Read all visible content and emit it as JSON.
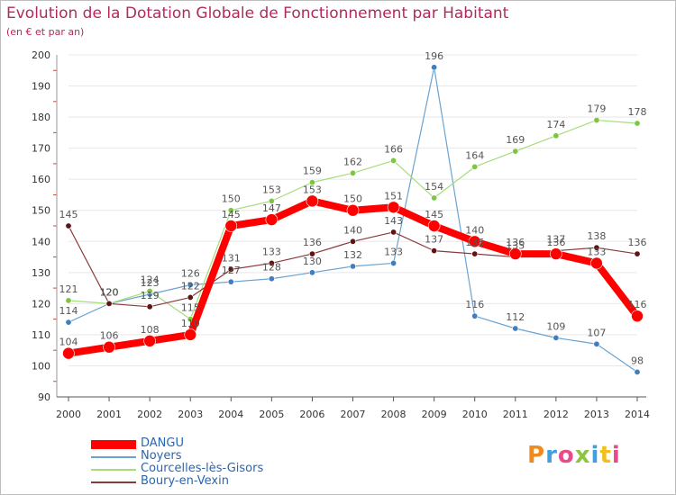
{
  "chart_data": {
    "type": "line",
    "title": "Evolution de la Dotation Globale de Fonctionnement par Habitant",
    "subtitle": "(en € et par an)",
    "xlabel": "",
    "ylabel": "",
    "ylim": [
      90,
      200
    ],
    "yticks": [
      90,
      100,
      110,
      120,
      130,
      140,
      150,
      160,
      170,
      180,
      190,
      200
    ],
    "x": [
      "2000",
      "2001",
      "2002",
      "2003",
      "2004",
      "2005",
      "2006",
      "2007",
      "2008",
      "2009",
      "2010",
      "2011",
      "2012",
      "2013",
      "2014"
    ],
    "legend_position": "bottom-left",
    "series": [
      {
        "name": "Noyers",
        "color": "#6aa3d0",
        "marker": "#3f7fbf",
        "width": 1.2,
        "radius": 3.2,
        "values": [
          114,
          120,
          123,
          126,
          127,
          128,
          130,
          132,
          133,
          196,
          116,
          112,
          109,
          107,
          98
        ],
        "labels": [
          "114",
          "120",
          "123",
          "126",
          "127",
          "128",
          "130",
          "132",
          "133",
          "196",
          "116",
          "112",
          "109",
          "107",
          "98"
        ]
      },
      {
        "name": "Courcelles-lès-Gisors",
        "color": "#a6dd7a",
        "marker": "#7cc642",
        "width": 1.2,
        "radius": 3.2,
        "values": [
          121,
          120,
          124,
          115,
          150,
          153,
          159,
          162,
          166,
          154,
          164,
          169,
          174,
          179,
          178
        ],
        "labels": [
          "121",
          "120",
          "124",
          "115",
          "150",
          "153",
          "159",
          "162",
          "166",
          "154",
          "164",
          "169",
          "174",
          "179",
          "178"
        ]
      },
      {
        "name": "Boury-en-Vexin",
        "color": "#8a3a3a",
        "marker": "#5e1414",
        "width": 1.2,
        "radius": 3.2,
        "values": [
          145,
          120,
          119,
          122,
          131,
          133,
          136,
          140,
          143,
          137,
          136,
          135,
          137,
          138,
          136
        ],
        "labels": [
          "145",
          "120",
          "119",
          "122",
          "131",
          "133",
          "136",
          "140",
          "143",
          "137",
          "136",
          "135",
          "137",
          "138",
          "136"
        ]
      },
      {
        "name": "DANGU",
        "color": "#ff0000",
        "marker": "#ff0000",
        "width": 8,
        "radius": 6.5,
        "values": [
          104,
          106,
          108,
          110,
          145,
          147,
          153,
          150,
          151,
          145,
          140,
          136,
          136,
          133,
          116
        ],
        "labels": [
          "104",
          "106",
          "108",
          "110",
          "145",
          "147",
          "153",
          "150",
          "151",
          "145",
          "140",
          "136",
          "136",
          "133",
          "116"
        ]
      }
    ],
    "legend_order": [
      "DANGU",
      "Noyers",
      "Courcelles-lès-Gisors",
      "Boury-en-Vexin"
    ]
  },
  "logo": {
    "text": "Proxiti",
    "colors": [
      "#f08a1c",
      "#3fa0e0",
      "#e84a8a",
      "#8cc63f",
      "#3fa0e0",
      "#f0c020",
      "#e84a8a"
    ]
  },
  "colors": {
    "title": "#b5285f",
    "axis": "#333333",
    "grid": "#e8e8e8",
    "axis_tick_red": "#d94040",
    "label": "#555555"
  }
}
